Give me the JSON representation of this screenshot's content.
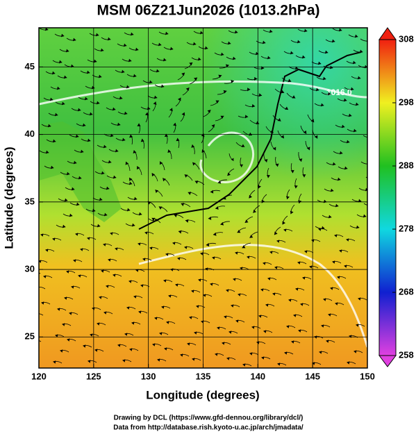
{
  "chart_data": {
    "type": "map",
    "title": "MSM 06Z21Jun2026 (1013.2hPa)",
    "xlabel": "Longitude (degrees)",
    "ylabel": "Latitude  (degrees)",
    "xlim": [
      120,
      150
    ],
    "ylim": [
      22.7,
      47.9
    ],
    "xticks": [
      120,
      125,
      130,
      135,
      140,
      145,
      150
    ],
    "yticks": [
      25,
      30,
      35,
      40,
      45
    ],
    "grid": true,
    "annotations": [
      "1016.0"
    ],
    "colorbar": {
      "lim": [
        258,
        308
      ],
      "ticks": [
        258,
        268,
        278,
        288,
        298,
        308
      ],
      "colors": [
        "#e040e0",
        "#1020d0",
        "#10d8e0",
        "#20c020",
        "#f0f020",
        "#f02010"
      ]
    },
    "credits": [
      "Drawing by DCL (https://www.gfd-dennou.org/library/dcl/)",
      "Data from http://database.rish.kyoto-u.ac.jp/arch/jmadata/"
    ]
  }
}
